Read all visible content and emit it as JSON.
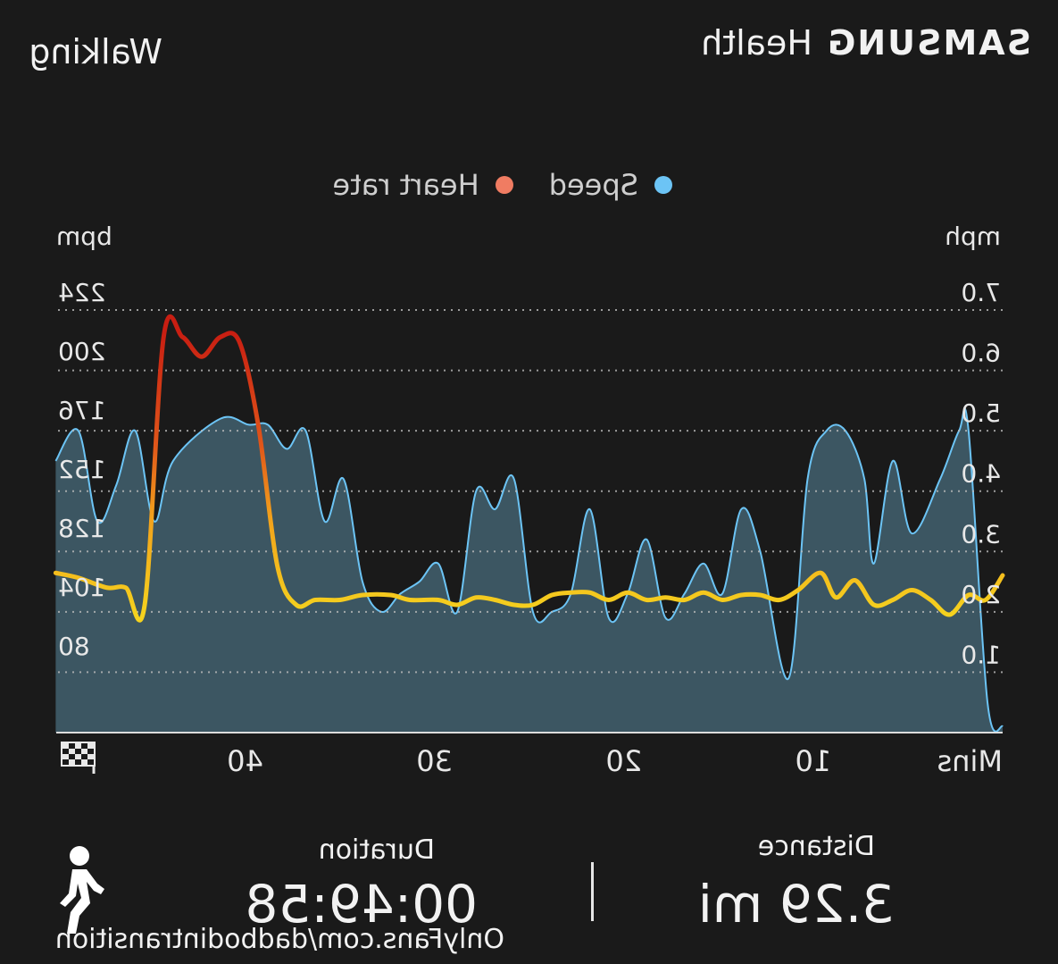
{
  "header": {
    "brand_bold": "SAMSUNG",
    "brand_light": "Health",
    "activity": "Walking"
  },
  "legend": [
    {
      "name": "Speed",
      "color": "#6cc4f5"
    },
    {
      "name": "Heart rate",
      "color": "#f07c62"
    }
  ],
  "chart_data": {
    "type": "area",
    "xlabel": "Mins",
    "x_ticks": [
      10,
      20,
      30,
      40
    ],
    "x_range": [
      0,
      49.97
    ],
    "end_marker_icon": "checkered-flag-icon",
    "left_axis": {
      "unit": "mph",
      "ticks": [
        "1.0",
        "2.0",
        "3.0",
        "4.0",
        "5.0",
        "6.0",
        "7.0"
      ],
      "range": [
        0,
        7.0
      ]
    },
    "right_axis": {
      "unit": "bpm",
      "ticks": [
        "80",
        "104",
        "128",
        "152",
        "176",
        "200",
        "224"
      ],
      "range": [
        52,
        224
      ]
    },
    "grid": "dotted-horizontal",
    "series": [
      {
        "name": "Speed",
        "type": "area",
        "axis": "left",
        "color": "#6cc4f5",
        "fill": "#3e5a66",
        "x": [
          0,
          0.8,
          1.8,
          2.3,
          3.3,
          4.8,
          5.8,
          6.8,
          7.3,
          8.3,
          9.3,
          10.3,
          11.3,
          12.8,
          13.8,
          14.8,
          15.8,
          16.8,
          17.8,
          18.8,
          19.8,
          20.8,
          21.8,
          22.8,
          23.8,
          24.8,
          25.8,
          26.8,
          27.8,
          28.8,
          29.8,
          30.8,
          31.8,
          32.8,
          33.8,
          34.8,
          35.8,
          36.8,
          37.8,
          38.8,
          39.8,
          41.3,
          43.8,
          44.8,
          45.8,
          46.8,
          47.8,
          48.8,
          50.0
        ],
        "y": [
          0.1,
          0.5,
          5.0,
          5.0,
          4.2,
          3.3,
          4.5,
          2.8,
          4.2,
          5.0,
          5.0,
          4.2,
          0.9,
          3.0,
          3.7,
          2.3,
          2.8,
          2.3,
          1.9,
          3.2,
          2.3,
          1.9,
          3.7,
          2.3,
          2.0,
          2.0,
          4.2,
          3.7,
          4.0,
          2.0,
          2.8,
          2.5,
          2.3,
          2.0,
          2.5,
          4.2,
          3.5,
          5.0,
          4.7,
          5.1,
          5.1,
          5.2,
          4.5,
          3.5,
          5.0,
          4.1,
          3.5,
          5.0,
          4.5
        ]
      },
      {
        "name": "Heart rate",
        "type": "line",
        "axis": "right",
        "x": [
          0,
          0.9,
          1.8,
          2.8,
          3.8,
          4.8,
          5.8,
          6.8,
          7.8,
          8.8,
          9.6,
          10.8,
          11.8,
          12.8,
          13.8,
          14.8,
          15.8,
          16.8,
          17.8,
          18.8,
          19.8,
          20.8,
          21.8,
          22.8,
          23.8,
          24.8,
          25.8,
          26.8,
          27.8,
          28.8,
          29.8,
          31.3,
          32.3,
          33.8,
          35.0,
          36.3,
          37.3,
          38.3,
          39.3,
          40.3,
          41.3,
          42.3,
          43.3,
          44.3,
          45.3,
          46.3,
          47.3,
          48.8,
          50.0
        ],
        "y": [
          116,
          106,
          108,
          100,
          106,
          110,
          106,
          104,
          114,
          107,
          117,
          110,
          106,
          108,
          108,
          106,
          109,
          106,
          107,
          106,
          109,
          106,
          109,
          109,
          108,
          104,
          104,
          106,
          107,
          104,
          106,
          106,
          108,
          108,
          106,
          106,
          104,
          120,
          177,
          211,
          213,
          205,
          213,
          213,
          104,
          111,
          111,
          115,
          117
        ]
      }
    ]
  },
  "stats": {
    "distance_label": "Distance",
    "distance_value": "3.29 mi",
    "duration_label": "Duration",
    "duration_value": "00:49:58"
  },
  "watermark": "OnlyFans.com/dadbodintransition"
}
